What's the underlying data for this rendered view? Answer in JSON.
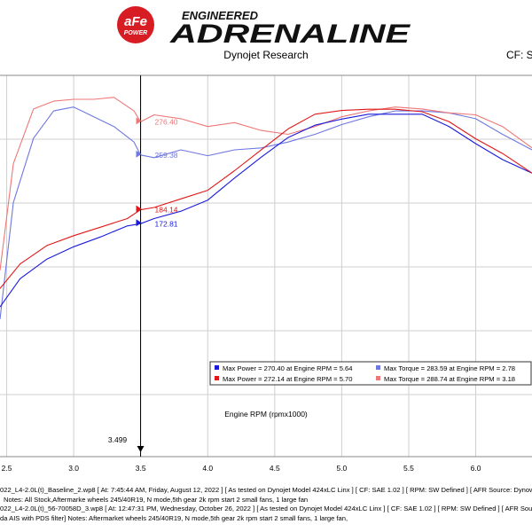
{
  "header": {
    "brand_top": "ENGINEERED",
    "brand_main": "ADRENALINE",
    "badge_text": "aFe",
    "badge_sub": "POWER",
    "subtitle": "Dynojet Research",
    "cf": "CF: SA"
  },
  "colors": {
    "baseline_power": "#1a1adc",
    "baseline_torque": "#6f78e0",
    "mod_power": "#e01818",
    "mod_torque": "#ee7777",
    "grid": "#cfcfcf",
    "logo_red": "#d81c24"
  },
  "chart_data": {
    "type": "line",
    "xlabel": "Engine RPM (rpmx1000)",
    "xlim": [
      2.45,
      6.42
    ],
    "x_ticks": [
      "2.5",
      "3.0",
      "3.5",
      "4.0",
      "4.5",
      "5.0",
      "5.5",
      "6.0"
    ],
    "cursor": {
      "x": 3.499,
      "label": "3.499"
    },
    "series": [
      {
        "id": "baseline_torque",
        "group": "torque",
        "x": [
          2.45,
          2.55,
          2.7,
          2.85,
          3.0,
          3.15,
          3.3,
          3.45,
          3.499,
          3.6,
          3.8,
          4.0,
          4.2,
          4.4,
          4.6,
          4.8,
          5.0,
          5.2,
          5.4,
          5.6,
          5.8,
          6.0,
          6.2,
          6.42
        ],
        "values": [
          175,
          235,
          268,
          282,
          284,
          279,
          274,
          266,
          259.38,
          258,
          262,
          259,
          262,
          263,
          266,
          270,
          275,
          279,
          282,
          282,
          281,
          278,
          270,
          262
        ]
      },
      {
        "id": "mod_torque",
        "group": "torque",
        "x": [
          2.45,
          2.55,
          2.7,
          2.85,
          3.0,
          3.15,
          3.3,
          3.45,
          3.499,
          3.6,
          3.8,
          4.0,
          4.2,
          4.4,
          4.6,
          4.8,
          5.0,
          5.2,
          5.4,
          5.6,
          5.8,
          6.0,
          6.2,
          6.42
        ],
        "values": [
          200,
          255,
          283,
          287,
          288,
          288,
          289,
          282,
          276.4,
          280,
          278,
          274,
          276,
          272,
          270,
          274,
          279,
          282,
          284,
          283,
          281,
          280,
          274,
          263
        ]
      },
      {
        "id": "baseline_power",
        "group": "power",
        "x": [
          2.45,
          2.6,
          2.8,
          3.0,
          3.2,
          3.4,
          3.499,
          3.6,
          3.8,
          4.0,
          4.2,
          4.4,
          4.6,
          4.8,
          5.0,
          5.2,
          5.4,
          5.6,
          5.8,
          6.0,
          6.2,
          6.42
        ],
        "values": [
          105,
          128,
          144,
          154,
          162,
          171,
          172.81,
          177,
          183,
          192,
          210,
          227,
          243,
          253,
          258,
          262,
          262,
          262,
          252,
          238,
          225,
          214
        ]
      },
      {
        "id": "mod_power",
        "group": "power",
        "x": [
          2.45,
          2.6,
          2.8,
          3.0,
          3.2,
          3.4,
          3.499,
          3.6,
          3.8,
          4.0,
          4.2,
          4.4,
          4.6,
          4.8,
          5.0,
          5.2,
          5.4,
          5.6,
          5.8,
          6.0,
          6.2,
          6.42
        ],
        "values": [
          120,
          140,
          155,
          163,
          170,
          177,
          184.14,
          186,
          193,
          200,
          216,
          233,
          250,
          262,
          265,
          266,
          266,
          264,
          256,
          242,
          230,
          214
        ]
      }
    ],
    "markers": [
      {
        "series": "mod_torque",
        "x": 3.499,
        "y": 276.4,
        "label": "276.40"
      },
      {
        "series": "baseline_torque",
        "x": 3.499,
        "y": 259.38,
        "label": "259.38"
      },
      {
        "series": "mod_power",
        "x": 3.499,
        "y": 184.14,
        "label": "184.14"
      },
      {
        "series": "baseline_power",
        "x": 3.499,
        "y": 172.81,
        "label": "172.81"
      }
    ],
    "legend": {
      "position": "bottom-right",
      "entries": [
        {
          "series": "baseline_power",
          "text": "Max Power = 270.40 at Engine RPM = 5.64"
        },
        {
          "series": "baseline_torque",
          "text": "Max Torque = 283.59 at Engine RPM = 2.78"
        },
        {
          "series": "mod_power",
          "text": "Max Power = 272.14 at Engine RPM = 5.70"
        },
        {
          "series": "mod_torque",
          "text": "Max Torque = 288.74 at Engine RPM = 3.18"
        }
      ]
    },
    "grid": true
  },
  "notes": {
    "run1": "022_L4-2.0L(t)_Baseline_2.wp8 [ At: 7:45:44 AM, Friday, August 12, 2022 ] [ As tested on Dynojet Model 424xLC Linx ] [ CF: SAE 1.02 ] [ RPM: SW Defined ] [ AFR Source: Dynowa",
    "run1_notes": "Notes: All Stock,Aftermarke wheels 245/40R19, N mode,5th gear 2k rpm start 2 small fans, 1 large fan",
    "run2": "022_L4-2.0L(t)_56-70058D_3.wp8 [ At: 12:47:31 PM, Wednesday, October 26, 2022 ] [ As tested on Dynojet Model 424xLC Linx ] [ CF: SAE 1.02 ] [ RPM: SW Defined ] [ AFR Source:",
    "run2_notes": "da AIS with PDS filter] Notes: Aftermarket wheels 245/40R19, N mode,5th gear 2k rpm start 2 small fans, 1 large fan,"
  }
}
